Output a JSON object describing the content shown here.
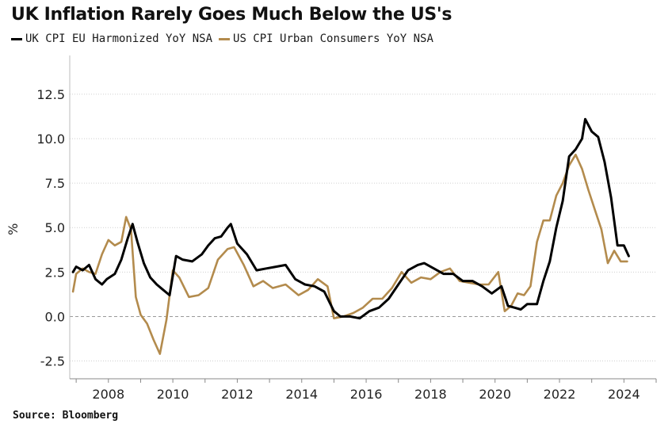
{
  "chart_data": {
    "type": "line",
    "title": "UK Inflation Rarely Goes Much Below the US's",
    "ylabel": "%",
    "xlabel": "",
    "ylim": [
      -3.5,
      14.5
    ],
    "xlim": [
      2006.8,
      2025.0
    ],
    "yticks": [
      12.5,
      10.0,
      7.5,
      5.0,
      2.5,
      0.0,
      -2.5
    ],
    "ytick_labels": [
      "12.5",
      "10.0",
      "7.5",
      "5.0",
      "2.5",
      "0.0",
      "-2.5"
    ],
    "xticks": [
      2008,
      2010,
      2012,
      2014,
      2016,
      2018,
      2020,
      2022,
      2024
    ],
    "xtick_labels": [
      "2008",
      "2010",
      "2012",
      "2014",
      "2016",
      "2018",
      "2020",
      "2022",
      "2024"
    ],
    "zero_line": "dashed",
    "grid": "horizontal dotted",
    "series": [
      {
        "name": "UK CPI EU Harmonized YoY NSA",
        "color": "#000000",
        "x": [
          2006.9,
          2007.0,
          2007.2,
          2007.4,
          2007.6,
          2007.8,
          2007.95,
          2008.2,
          2008.4,
          2008.6,
          2008.75,
          2008.9,
          2009.1,
          2009.3,
          2009.5,
          2009.7,
          2009.9,
          2010.1,
          2010.3,
          2010.6,
          2010.9,
          2011.1,
          2011.3,
          2011.5,
          2011.7,
          2011.8,
          2012.0,
          2012.3,
          2012.6,
          2012.9,
          2013.2,
          2013.5,
          2013.8,
          2014.1,
          2014.4,
          2014.7,
          2015.0,
          2015.2,
          2015.5,
          2015.8,
          2016.1,
          2016.4,
          2016.7,
          2017.0,
          2017.3,
          2017.6,
          2017.8,
          2018.1,
          2018.4,
          2018.7,
          2019.0,
          2019.3,
          2019.6,
          2019.9,
          2020.2,
          2020.4,
          2020.6,
          2020.8,
          2021.0,
          2021.3,
          2021.5,
          2021.7,
          2021.9,
          2022.1,
          2022.3,
          2022.5,
          2022.7,
          2022.8,
          2023.0,
          2023.2,
          2023.4,
          2023.6,
          2023.8,
          2024.0,
          2024.15
        ],
        "values": [
          2.5,
          2.8,
          2.6,
          2.9,
          2.1,
          1.8,
          2.1,
          2.4,
          3.2,
          4.4,
          5.2,
          4.2,
          3.0,
          2.2,
          1.8,
          1.5,
          1.2,
          3.4,
          3.2,
          3.1,
          3.5,
          4.0,
          4.4,
          4.5,
          5.0,
          5.2,
          4.1,
          3.5,
          2.6,
          2.7,
          2.8,
          2.9,
          2.1,
          1.8,
          1.7,
          1.4,
          0.3,
          0.0,
          0.0,
          -0.1,
          0.3,
          0.5,
          1.0,
          1.8,
          2.6,
          2.9,
          3.0,
          2.7,
          2.4,
          2.4,
          2.0,
          2.0,
          1.7,
          1.3,
          1.7,
          0.6,
          0.5,
          0.4,
          0.7,
          0.7,
          2.0,
          3.1,
          5.0,
          6.5,
          9.0,
          9.4,
          10.0,
          11.1,
          10.4,
          10.1,
          8.7,
          6.7,
          4.0,
          4.0,
          3.4
        ]
      },
      {
        "name": "US CPI Urban Consumers YoY NSA",
        "color": "#b38b4d",
        "x": [
          2006.9,
          2007.0,
          2007.2,
          2007.4,
          2007.6,
          2007.8,
          2008.0,
          2008.2,
          2008.4,
          2008.55,
          2008.7,
          2008.85,
          2009.0,
          2009.2,
          2009.4,
          2009.6,
          2009.8,
          2010.0,
          2010.2,
          2010.5,
          2010.8,
          2011.1,
          2011.4,
          2011.7,
          2011.9,
          2012.2,
          2012.5,
          2012.8,
          2013.1,
          2013.5,
          2013.9,
          2014.2,
          2014.5,
          2014.8,
          2015.0,
          2015.3,
          2015.6,
          2015.9,
          2016.2,
          2016.5,
          2016.8,
          2017.1,
          2017.4,
          2017.7,
          2018.0,
          2018.3,
          2018.6,
          2018.9,
          2019.2,
          2019.5,
          2019.8,
          2020.1,
          2020.3,
          2020.5,
          2020.7,
          2020.9,
          2021.1,
          2021.3,
          2021.5,
          2021.7,
          2021.9,
          2022.1,
          2022.3,
          2022.5,
          2022.7,
          2022.9,
          2023.1,
          2023.3,
          2023.5,
          2023.7,
          2023.9,
          2024.1
        ],
        "values": [
          1.4,
          2.4,
          2.7,
          2.5,
          2.4,
          3.5,
          4.3,
          4.0,
          4.2,
          5.6,
          4.9,
          1.1,
          0.1,
          -0.4,
          -1.3,
          -2.1,
          -0.2,
          2.6,
          2.2,
          1.1,
          1.2,
          1.6,
          3.2,
          3.8,
          3.9,
          2.9,
          1.7,
          2.0,
          1.6,
          1.8,
          1.2,
          1.5,
          2.1,
          1.7,
          -0.1,
          0.0,
          0.2,
          0.5,
          1.0,
          1.0,
          1.6,
          2.5,
          1.9,
          2.2,
          2.1,
          2.5,
          2.7,
          2.0,
          1.9,
          1.8,
          1.8,
          2.5,
          0.3,
          0.6,
          1.3,
          1.2,
          1.7,
          4.2,
          5.4,
          5.4,
          6.8,
          7.5,
          8.5,
          9.1,
          8.3,
          7.1,
          6.0,
          4.9,
          3.0,
          3.7,
          3.1,
          3.1
        ]
      }
    ]
  },
  "header": {
    "title": "UK Inflation Rarely Goes Much Below the US's"
  },
  "legend": [
    {
      "label": "UK CPI EU Harmonized YoY NSA",
      "color": "#000000"
    },
    {
      "label": "US CPI Urban Consumers YoY NSA",
      "color": "#b38b4d"
    }
  ],
  "footer": {
    "source": "Source: Bloomberg"
  }
}
